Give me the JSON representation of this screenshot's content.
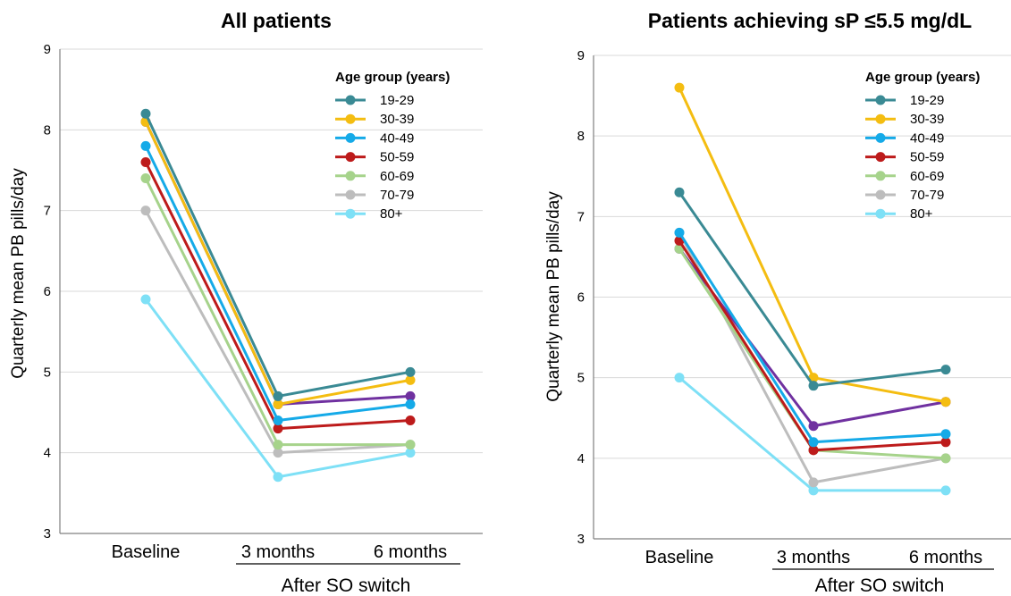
{
  "chart_data": [
    {
      "type": "line",
      "title": "All patients",
      "ylabel": "Quarterly mean PB pills/day",
      "xlabel": "",
      "categories": [
        "Baseline",
        "3 months",
        "6 months"
      ],
      "group_label": "After SO switch",
      "ylim": [
        3,
        9
      ],
      "yticks": [
        "3",
        "4",
        "5",
        "6",
        "7",
        "8",
        "9"
      ],
      "grid": true,
      "legend_title": "Age group (years)",
      "legend_placement": "top-right",
      "series": [
        {
          "name": "19-29",
          "color": "#3a8a94",
          "values": [
            8.2,
            4.7,
            5.0
          ]
        },
        {
          "name": "30-39",
          "color": "#f4bd11",
          "values": [
            8.1,
            4.6,
            4.9
          ]
        },
        {
          "name": "40-49",
          "color": "#15aae8",
          "values": [
            7.8,
            4.4,
            4.6
          ]
        },
        {
          "name": "50-59",
          "color": "#bd1b1b",
          "values": [
            7.6,
            4.3,
            4.4
          ]
        },
        {
          "name": "60-69",
          "color": "#a6d38b",
          "values": [
            7.4,
            4.1,
            4.1
          ]
        },
        {
          "name": "70-79",
          "color": "#bdbdbd",
          "values": [
            7.0,
            4.0,
            4.1
          ]
        },
        {
          "name": "80+",
          "color": "#7ee0f6",
          "values": [
            5.9,
            3.7,
            4.0
          ]
        },
        {
          "color": "#7031a0",
          "values": [
            8.1,
            4.6,
            4.7
          ]
        }
      ]
    },
    {
      "type": "line",
      "title": "Patients achieving sP ≤5.5 mg/dL",
      "ylabel": "Quarterly mean PB pills/day",
      "xlabel": "",
      "categories": [
        "Baseline",
        "3 months",
        "6 months"
      ],
      "group_label": "After SO switch",
      "ylim": [
        3,
        9
      ],
      "yticks": [
        "3",
        "4",
        "5",
        "6",
        "7",
        "8",
        "9"
      ],
      "grid": true,
      "legend_title": "Age group (years)",
      "legend_placement": "top-right",
      "series": [
        {
          "name": "19-29",
          "color": "#3a8a94",
          "values": [
            7.3,
            4.9,
            5.1
          ]
        },
        {
          "name": "30-39",
          "color": "#f4bd11",
          "values": [
            8.6,
            5.0,
            4.7
          ]
        },
        {
          "name": "40-49",
          "color": "#15aae8",
          "values": [
            6.8,
            4.2,
            4.3
          ]
        },
        {
          "name": "50-59",
          "color": "#bd1b1b",
          "values": [
            6.7,
            4.1,
            4.2
          ]
        },
        {
          "name": "60-69",
          "color": "#a6d38b",
          "values": [
            6.6,
            4.1,
            4.0
          ]
        },
        {
          "name": "70-79",
          "color": "#bdbdbd",
          "values": [
            6.8,
            3.7,
            4.0
          ]
        },
        {
          "name": "80+",
          "color": "#7ee0f6",
          "values": [
            5.0,
            3.6,
            3.6
          ]
        },
        {
          "color": "#7031a0",
          "values": [
            6.6,
            4.4,
            4.7
          ]
        }
      ]
    }
  ]
}
